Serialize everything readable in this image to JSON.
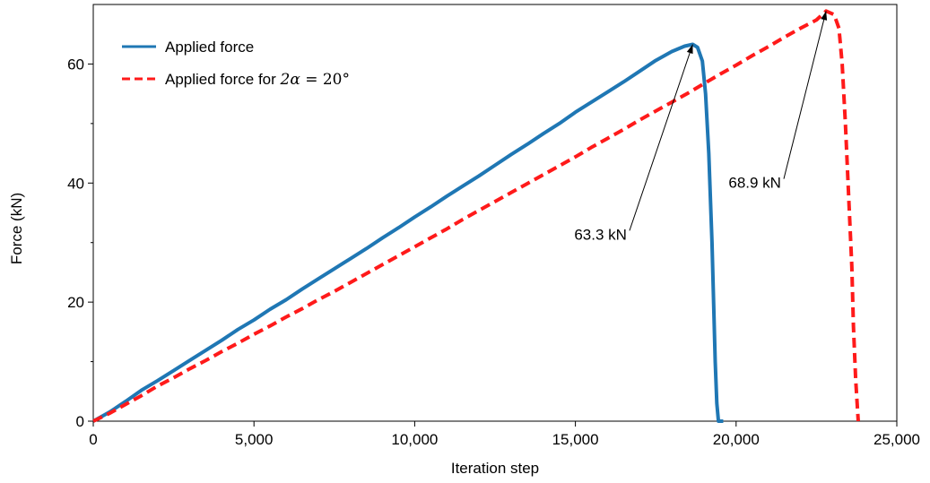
{
  "chart_data": {
    "type": "line",
    "xlabel": "Iteration step",
    "ylabel": "Force (kN)",
    "xlim": [
      0,
      25000
    ],
    "ylim": [
      0,
      70
    ],
    "x_ticks": [
      0,
      5000,
      10000,
      15000,
      20000,
      25000
    ],
    "x_tick_labels": [
      "0",
      "5,000",
      "10,000",
      "15,000",
      "20,000",
      "25,000"
    ],
    "y_ticks": [
      0,
      20,
      40,
      60
    ],
    "y_tick_labels": [
      "0",
      "20",
      "40",
      "60"
    ],
    "y_minor_ticks": [
      10,
      30,
      50
    ],
    "grid": false,
    "legend_position": "top-left",
    "series": [
      {
        "name": "Applied force",
        "color": "#1f77b4",
        "style": "solid",
        "points": [
          [
            0,
            0
          ],
          [
            500,
            1.5
          ],
          [
            1000,
            3.3
          ],
          [
            1500,
            5.2
          ],
          [
            2000,
            6.8
          ],
          [
            2500,
            8.5
          ],
          [
            3000,
            10.2
          ],
          [
            3500,
            11.9
          ],
          [
            4000,
            13.6
          ],
          [
            4500,
            15.4
          ],
          [
            5000,
            17.0
          ],
          [
            5500,
            18.8
          ],
          [
            6000,
            20.4
          ],
          [
            6500,
            22.2
          ],
          [
            7000,
            23.9
          ],
          [
            7500,
            25.6
          ],
          [
            8000,
            27.3
          ],
          [
            8500,
            29.0
          ],
          [
            9000,
            30.8
          ],
          [
            9500,
            32.5
          ],
          [
            10000,
            34.3
          ],
          [
            10500,
            36.0
          ],
          [
            11000,
            37.8
          ],
          [
            11500,
            39.5
          ],
          [
            12000,
            41.2
          ],
          [
            12500,
            43.0
          ],
          [
            13000,
            44.8
          ],
          [
            13500,
            46.5
          ],
          [
            14000,
            48.3
          ],
          [
            14500,
            50.0
          ],
          [
            15000,
            51.9
          ],
          [
            15500,
            53.6
          ],
          [
            16000,
            55.3
          ],
          [
            16500,
            57.0
          ],
          [
            17000,
            58.8
          ],
          [
            17500,
            60.6
          ],
          [
            18000,
            62.1
          ],
          [
            18400,
            63.0
          ],
          [
            18650,
            63.3
          ],
          [
            18800,
            62.8
          ],
          [
            18950,
            60.5
          ],
          [
            19050,
            55.0
          ],
          [
            19150,
            45.0
          ],
          [
            19250,
            30.0
          ],
          [
            19300,
            20.0
          ],
          [
            19350,
            10.0
          ],
          [
            19400,
            3.0
          ],
          [
            19450,
            0.0
          ],
          [
            19600,
            0.0
          ]
        ]
      },
      {
        "name": "Applied force for 2α = 20°",
        "color": "#ff1a1a",
        "style": "dashed",
        "points": [
          [
            0,
            0
          ],
          [
            500,
            1.3
          ],
          [
            1000,
            2.8
          ],
          [
            1500,
            4.3
          ],
          [
            2000,
            5.9
          ],
          [
            2500,
            7.3
          ],
          [
            3000,
            8.8
          ],
          [
            3500,
            10.2
          ],
          [
            4000,
            11.7
          ],
          [
            4500,
            13.1
          ],
          [
            5000,
            14.6
          ],
          [
            5500,
            16.0
          ],
          [
            6000,
            17.5
          ],
          [
            6500,
            18.9
          ],
          [
            7000,
            20.4
          ],
          [
            7500,
            21.8
          ],
          [
            8000,
            23.3
          ],
          [
            8500,
            24.8
          ],
          [
            9000,
            26.3
          ],
          [
            9500,
            27.8
          ],
          [
            10000,
            29.3
          ],
          [
            10500,
            30.8
          ],
          [
            11000,
            32.3
          ],
          [
            11500,
            33.9
          ],
          [
            12000,
            35.4
          ],
          [
            12500,
            36.9
          ],
          [
            13000,
            38.4
          ],
          [
            13500,
            39.9
          ],
          [
            14000,
            41.4
          ],
          [
            14500,
            42.9
          ],
          [
            15000,
            44.4
          ],
          [
            15500,
            46.0
          ],
          [
            16000,
            47.5
          ],
          [
            16500,
            49.0
          ],
          [
            17000,
            50.6
          ],
          [
            17500,
            52.1
          ],
          [
            18000,
            53.6
          ],
          [
            18500,
            55.1
          ],
          [
            19000,
            56.7
          ],
          [
            19500,
            58.3
          ],
          [
            20000,
            59.8
          ],
          [
            20500,
            61.4
          ],
          [
            21000,
            62.9
          ],
          [
            21500,
            64.5
          ],
          [
            22000,
            66.0
          ],
          [
            22500,
            67.4
          ],
          [
            22800,
            68.9
          ],
          [
            23050,
            68.3
          ],
          [
            23200,
            66.0
          ],
          [
            23300,
            60.0
          ],
          [
            23400,
            50.0
          ],
          [
            23500,
            38.0
          ],
          [
            23600,
            26.0
          ],
          [
            23650,
            16.0
          ],
          [
            23720,
            7.0
          ],
          [
            23800,
            0.0
          ]
        ]
      }
    ],
    "annotations": [
      {
        "text": "63.3 kN",
        "point": [
          18650,
          63.3
        ],
        "text_at": [
          16600,
          30.5
        ]
      },
      {
        "text": "68.9 kN",
        "point": [
          22800,
          68.9
        ],
        "text_at": [
          21400,
          39.2
        ]
      }
    ]
  },
  "legend": [
    {
      "label": "Applied force",
      "color": "#1f77b4",
      "style": "solid"
    },
    {
      "label_prefix": "Applied force for ",
      "math_italic": "2α",
      "math_rest": " = 20°",
      "color": "#ff1a1a",
      "style": "dashed"
    }
  ]
}
